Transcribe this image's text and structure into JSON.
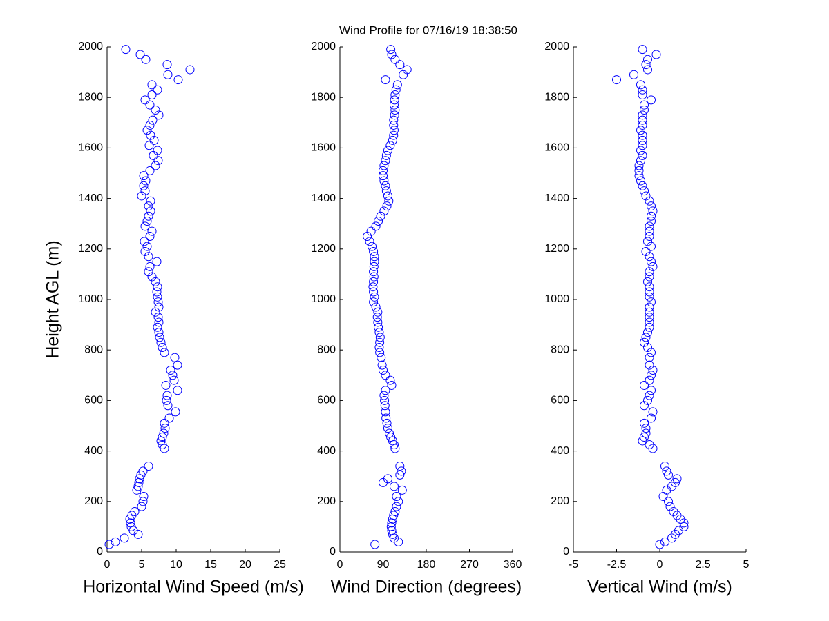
{
  "title": "Wind Profile for  07/16/19 18:38:50",
  "chart_data": [
    {
      "type": "scatter",
      "xlabel": "Horizontal Wind Speed (m/s)",
      "ylabel": "Height AGL (m)",
      "color": "#0000ff",
      "xlim": [
        0,
        25
      ],
      "xticks": [
        0,
        5,
        10,
        15,
        20,
        25
      ],
      "ylim": [
        0,
        2000
      ],
      "yticks": [
        0,
        200,
        400,
        600,
        800,
        1000,
        1200,
        1400,
        1600,
        1800,
        2000
      ],
      "x": [
        0.3,
        1.2,
        2.5,
        4.5,
        3.8,
        3.5,
        3.4,
        3.3,
        3.6,
        4.0,
        5.0,
        5.2,
        5.3,
        4.3,
        4.5,
        4.6,
        4.7,
        4.9,
        5.2,
        6.0,
        8.3,
        8.0,
        7.8,
        8.0,
        8.2,
        8.4,
        8.3,
        9.0,
        9.9,
        8.8,
        8.6,
        8.7,
        10.2,
        8.5,
        9.7,
        9.5,
        9.2,
        10.2,
        9.8,
        8.3,
        8.0,
        7.8,
        7.6,
        7.5,
        7.3,
        7.5,
        7.4,
        7.0,
        7.5,
        7.4,
        7.3,
        7.2,
        7.3,
        7.0,
        6.5,
        6.0,
        6.2,
        7.2,
        6.0,
        5.5,
        5.8,
        5.4,
        6.2,
        6.5,
        5.5,
        5.8,
        6.0,
        6.3,
        6.0,
        6.3,
        5.0,
        5.5,
        5.3,
        5.6,
        5.3,
        6.2,
        7.0,
        7.4,
        6.7,
        7.3,
        6.1,
        6.8,
        6.3,
        5.8,
        6.2,
        6.6,
        7.5,
        7.0,
        6.2,
        5.5,
        6.5,
        7.3,
        6.5,
        10.3,
        8.8,
        12.0,
        8.7,
        5.6,
        4.8,
        2.7
      ],
      "y": [
        30,
        40,
        55,
        70,
        85,
        100,
        115,
        130,
        145,
        160,
        180,
        200,
        220,
        245,
        260,
        275,
        290,
        305,
        320,
        340,
        410,
        425,
        440,
        455,
        470,
        490,
        510,
        530,
        555,
        580,
        600,
        620,
        640,
        660,
        680,
        700,
        720,
        740,
        770,
        790,
        810,
        830,
        850,
        870,
        890,
        910,
        930,
        950,
        970,
        990,
        1010,
        1030,
        1050,
        1070,
        1090,
        1110,
        1130,
        1150,
        1170,
        1190,
        1210,
        1230,
        1250,
        1270,
        1290,
        1310,
        1330,
        1350,
        1370,
        1390,
        1410,
        1430,
        1450,
        1470,
        1490,
        1510,
        1530,
        1550,
        1570,
        1590,
        1610,
        1630,
        1650,
        1670,
        1690,
        1710,
        1730,
        1750,
        1770,
        1790,
        1810,
        1830,
        1850,
        1870,
        1890,
        1910,
        1930,
        1950,
        1970,
        1990
      ]
    },
    {
      "type": "scatter",
      "xlabel": "Wind Direction (degrees)",
      "color": "#0000ff",
      "xlim": [
        0,
        360
      ],
      "xticks": [
        0,
        90,
        180,
        270,
        360
      ],
      "ylim": [
        0,
        2000
      ],
      "yticks": [
        0,
        200,
        400,
        600,
        800,
        1000,
        1200,
        1400,
        1600,
        1800,
        2000
      ],
      "x": [
        73,
        122,
        113,
        110,
        108,
        107,
        108,
        110,
        112,
        115,
        118,
        122,
        118,
        130,
        113,
        90,
        100,
        125,
        128,
        125,
        115,
        113,
        110,
        106,
        103,
        100,
        98,
        96,
        95,
        94,
        93,
        92,
        95,
        108,
        105,
        95,
        90,
        88,
        86,
        83,
        82,
        83,
        84,
        82,
        80,
        79,
        78,
        79,
        75,
        70,
        72,
        70,
        69,
        70,
        71,
        70,
        71,
        72,
        72,
        70,
        67,
        62,
        57,
        65,
        75,
        80,
        85,
        92,
        98,
        102,
        100,
        97,
        95,
        92,
        90,
        90,
        92,
        95,
        97,
        100,
        105,
        110,
        112,
        113,
        112,
        112,
        114,
        115,
        113,
        114,
        115,
        117,
        120,
        95,
        132,
        140,
        125,
        115,
        108,
        106
      ],
      "y": [
        30,
        40,
        55,
        70,
        85,
        100,
        115,
        130,
        145,
        160,
        180,
        200,
        220,
        245,
        260,
        275,
        290,
        305,
        320,
        340,
        410,
        425,
        440,
        455,
        470,
        490,
        510,
        530,
        555,
        580,
        600,
        620,
        640,
        660,
        680,
        700,
        720,
        740,
        770,
        790,
        810,
        830,
        850,
        870,
        890,
        910,
        930,
        950,
        970,
        990,
        1010,
        1030,
        1050,
        1070,
        1090,
        1110,
        1130,
        1150,
        1170,
        1190,
        1210,
        1230,
        1250,
        1270,
        1290,
        1310,
        1330,
        1350,
        1370,
        1390,
        1410,
        1430,
        1450,
        1470,
        1490,
        1510,
        1530,
        1550,
        1570,
        1590,
        1610,
        1630,
        1650,
        1670,
        1690,
        1710,
        1730,
        1750,
        1770,
        1790,
        1810,
        1830,
        1850,
        1870,
        1890,
        1910,
        1930,
        1950,
        1970,
        1990
      ]
    },
    {
      "type": "scatter",
      "xlabel": "Vertical Wind (m/s)",
      "color": "#0000ff",
      "xlim": [
        -5,
        5
      ],
      "xticks": [
        -5,
        -2.5,
        0,
        2.5,
        5
      ],
      "ylim": [
        0,
        2000
      ],
      "yticks": [
        0,
        200,
        400,
        600,
        800,
        1000,
        1200,
        1400,
        1600,
        1800,
        2000
      ],
      "x": [
        0,
        0.3,
        0.7,
        0.9,
        1.1,
        1.4,
        1.4,
        1.2,
        1.0,
        0.8,
        0.6,
        0.5,
        0.2,
        0.4,
        0.7,
        0.9,
        1.0,
        0.5,
        0.4,
        0.3,
        -0.4,
        -0.6,
        -1.0,
        -0.9,
        -0.8,
        -0.8,
        -0.9,
        -0.5,
        -0.4,
        -0.9,
        -0.7,
        -0.6,
        -0.5,
        -0.9,
        -0.6,
        -0.5,
        -0.4,
        -0.6,
        -0.6,
        -0.5,
        -0.7,
        -0.9,
        -0.8,
        -0.7,
        -0.6,
        -0.6,
        -0.6,
        -0.6,
        -0.6,
        -0.5,
        -0.6,
        -0.6,
        -0.6,
        -0.7,
        -0.6,
        -0.6,
        -0.4,
        -0.5,
        -0.6,
        -0.8,
        -0.5,
        -0.7,
        -0.6,
        -0.6,
        -0.6,
        -0.5,
        -0.5,
        -0.4,
        -0.5,
        -0.6,
        -0.8,
        -0.9,
        -1.0,
        -1.1,
        -1.2,
        -1.2,
        -1.2,
        -1.1,
        -1.0,
        -1.1,
        -1.0,
        -1.0,
        -1.0,
        -1.1,
        -1.0,
        -1.0,
        -1.0,
        -0.9,
        -0.9,
        -0.5,
        -1.0,
        -1.0,
        -1.1,
        -2.5,
        -1.5,
        -0.7,
        -0.8,
        -0.7,
        -0.2,
        -1.0
      ],
      "y": [
        30,
        40,
        55,
        70,
        85,
        100,
        115,
        130,
        145,
        160,
        180,
        200,
        220,
        245,
        260,
        275,
        290,
        305,
        320,
        340,
        410,
        425,
        440,
        455,
        470,
        490,
        510,
        530,
        555,
        580,
        600,
        620,
        640,
        660,
        680,
        700,
        720,
        740,
        770,
        790,
        810,
        830,
        850,
        870,
        890,
        910,
        930,
        950,
        970,
        990,
        1010,
        1030,
        1050,
        1070,
        1090,
        1110,
        1130,
        1150,
        1170,
        1190,
        1210,
        1230,
        1250,
        1270,
        1290,
        1310,
        1330,
        1350,
        1370,
        1390,
        1410,
        1430,
        1450,
        1470,
        1490,
        1510,
        1530,
        1550,
        1570,
        1590,
        1610,
        1630,
        1650,
        1670,
        1690,
        1710,
        1730,
        1750,
        1770,
        1790,
        1810,
        1830,
        1850,
        1870,
        1890,
        1910,
        1930,
        1950,
        1970,
        1990
      ]
    }
  ]
}
